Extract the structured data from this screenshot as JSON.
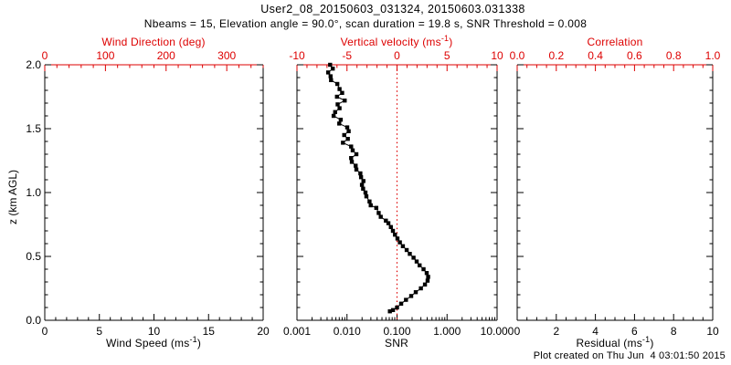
{
  "header": {
    "title": "User2_08_20150603_031324, 20150603.031338",
    "subtitle": "Nbeams = 15, Elevation angle = 90.0°, scan duration = 19.8 s, SNR Threshold = 0.008"
  },
  "footer": {
    "created": "Plot created on Thu Jun  4 03:01:50 2015"
  },
  "colors": {
    "axis_black": "#000000",
    "accent_red": "#dd0000",
    "marker": "#000000",
    "background": "#ffffff"
  },
  "chart_data": {
    "type": "scatter",
    "title": "User2_08_20150603_031324, 20150603.031338",
    "y_axis": {
      "label": "z (km AGL)",
      "range": [
        0,
        2
      ],
      "major_values": [
        0,
        0.5,
        1,
        1.5,
        2
      ],
      "labels": [
        "0.0",
        "0.5",
        "1.0",
        "1.5",
        "2.0"
      ],
      "minor_step": 0.1
    },
    "panels": [
      {
        "name": "wind-speed",
        "top_axis": {
          "label": "Wind Direction (deg)",
          "color": "#dd0000",
          "range": [
            0,
            360
          ],
          "major_values": [
            0,
            100,
            200,
            300
          ],
          "labels": [
            "0",
            "100",
            "200",
            "300"
          ],
          "minor_step": 20
        },
        "bottom_axis": {
          "label_pre": "Wind Speed (ms",
          "label_sup": "-1",
          "label_post": ")",
          "range": [
            0,
            20
          ],
          "major_values": [
            0,
            5,
            10,
            15,
            20
          ],
          "labels": [
            "0",
            "5",
            "10",
            "15",
            "20"
          ],
          "minor_step": 1
        },
        "data_points": []
      },
      {
        "name": "snr",
        "top_axis": {
          "label_pre": "Vertical velocity (ms",
          "label_sup": "-1",
          "label_post": ")",
          "color": "#dd0000",
          "range": [
            -10,
            10
          ],
          "major_values": [
            -10,
            -5,
            0,
            5,
            10
          ],
          "labels": [
            "-10",
            "-5",
            "0",
            "5",
            "10"
          ],
          "minor_step": 1
        },
        "bottom_axis": {
          "label": "SNR",
          "scale": "log",
          "range": [
            0.001,
            10
          ],
          "major_values": [
            0.001,
            0.01,
            0.1,
            1,
            10
          ],
          "labels": [
            "0.001",
            "0.010",
            "0.100",
            "1.000",
            "10.000"
          ]
        },
        "reference_line": {
          "at_snr": 0.1,
          "at_vertical_velocity": 0,
          "style": "dotted",
          "color": "#dd0000"
        },
        "series": {
          "name": "snr-profile",
          "marker": "filled-square",
          "color": "#000000",
          "z_km": [
            2.0,
            1.97,
            1.94,
            1.91,
            1.88,
            1.85,
            1.81,
            1.78,
            1.75,
            1.72,
            1.69,
            1.66,
            1.63,
            1.6,
            1.57,
            1.54,
            1.51,
            1.48,
            1.45,
            1.42,
            1.39,
            1.36,
            1.33,
            1.3,
            1.27,
            1.24,
            1.21,
            1.18,
            1.15,
            1.12,
            1.09,
            1.06,
            1.03,
            1.0,
            0.97,
            0.93,
            0.9,
            0.88,
            0.84,
            0.81,
            0.78,
            0.76,
            0.73,
            0.7,
            0.67,
            0.64,
            0.61,
            0.58,
            0.55,
            0.52,
            0.49,
            0.46,
            0.43,
            0.4,
            0.37,
            0.34,
            0.31,
            0.28,
            0.25,
            0.22,
            0.19,
            0.16,
            0.13,
            0.1,
            0.08,
            0.07
          ],
          "snr": [
            0.0046,
            0.0052,
            0.0042,
            0.0047,
            0.0048,
            0.0064,
            0.0071,
            0.008,
            0.0063,
            0.009,
            0.0065,
            0.0071,
            0.0058,
            0.0054,
            0.0075,
            0.007,
            0.0101,
            0.0108,
            0.0088,
            0.0104,
            0.0083,
            0.0121,
            0.013,
            0.0154,
            0.0121,
            0.0125,
            0.0149,
            0.0154,
            0.0185,
            0.0191,
            0.0213,
            0.0199,
            0.021,
            0.0234,
            0.0244,
            0.0282,
            0.0298,
            0.0385,
            0.043,
            0.0473,
            0.0599,
            0.0672,
            0.0753,
            0.0828,
            0.091,
            0.102,
            0.114,
            0.131,
            0.156,
            0.18,
            0.214,
            0.247,
            0.283,
            0.339,
            0.392,
            0.419,
            0.408,
            0.362,
            0.3,
            0.237,
            0.192,
            0.151,
            0.121,
            0.1,
            0.083,
            0.072
          ]
        }
      },
      {
        "name": "residual",
        "top_axis": {
          "label": "Correlation",
          "color": "#dd0000",
          "range": [
            0,
            1
          ],
          "major_values": [
            0,
            0.2,
            0.4,
            0.6,
            0.8,
            1
          ],
          "labels": [
            "0.0",
            "0.2",
            "0.4",
            "0.6",
            "0.8",
            "1.0"
          ],
          "minor_step": 0.05
        },
        "bottom_axis": {
          "label_pre": "Residual (ms",
          "label_sup": "-1",
          "label_post": ")",
          "range": [
            0,
            10
          ],
          "major_values": [
            0,
            2,
            4,
            6,
            8,
            10
          ],
          "labels": [
            "0",
            "2",
            "4",
            "6",
            "8",
            "10"
          ],
          "minor_step": 0.5
        },
        "data_points": []
      }
    ]
  }
}
